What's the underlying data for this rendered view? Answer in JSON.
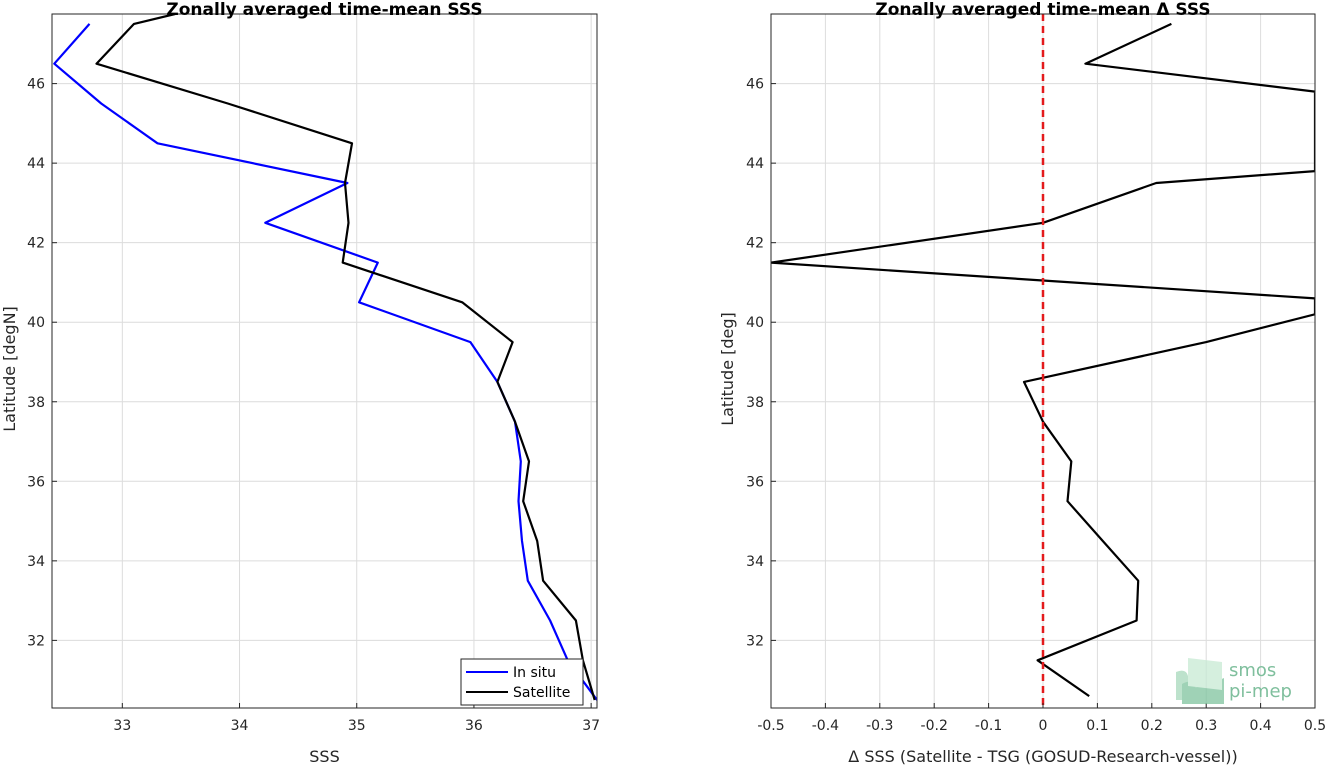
{
  "chart_data": [
    {
      "type": "line",
      "title": "Zonally averaged time-mean SSS",
      "xlabel": "SSS",
      "ylabel": "Latitude [degN]",
      "xlim": [
        32.4,
        37.05
      ],
      "ylim": [
        30.3,
        47.75
      ],
      "xticks": [
        33,
        34,
        35,
        36,
        37
      ],
      "yticks": [
        32,
        34,
        36,
        38,
        40,
        42,
        44,
        46
      ],
      "grid": true,
      "legend": "bottom-right",
      "series": [
        {
          "name": "In situ",
          "color": "#0000ff",
          "x": [
            32.72,
            32.42,
            32.82,
            33.3,
            34.92,
            34.22,
            35.18,
            35.02,
            35.97,
            36.2,
            36.35,
            36.4,
            36.38,
            36.41,
            36.46,
            36.65,
            36.8,
            37.05
          ],
          "y": [
            47.5,
            46.5,
            45.5,
            44.5,
            43.5,
            42.5,
            41.5,
            40.5,
            39.5,
            38.5,
            37.5,
            36.5,
            35.5,
            34.5,
            33.5,
            32.5,
            31.5,
            30.5
          ]
        },
        {
          "name": "Satellite",
          "color": "#000000",
          "x": [
            33.45,
            33.1,
            32.78,
            33.9,
            34.96,
            34.9,
            34.93,
            34.88,
            35.9,
            36.33,
            36.2,
            36.35,
            36.47,
            36.42,
            36.54,
            36.59,
            36.87,
            36.93,
            37.03
          ],
          "y": [
            47.75,
            47.5,
            46.5,
            45.5,
            44.5,
            43.5,
            42.5,
            41.5,
            40.5,
            39.5,
            38.5,
            37.5,
            36.5,
            35.5,
            34.5,
            33.5,
            32.5,
            31.5,
            30.5
          ]
        }
      ]
    },
    {
      "type": "line",
      "title": "Zonally averaged time-mean Δ SSS",
      "xlabel": "Δ SSS (Satellite - TSG (GOSUD-Research-vessel))",
      "ylabel": "Latitude [deg]",
      "xlim": [
        -0.5,
        0.5
      ],
      "ylim": [
        30.3,
        47.75
      ],
      "xticks": [
        -0.5,
        -0.4,
        -0.3,
        -0.2,
        -0.1,
        0,
        0.1,
        0.2,
        0.3,
        0.4,
        0.5
      ],
      "xticklabels": [
        "-0.5",
        "-0.4",
        "-0.3",
        "-0.2",
        "-0.1",
        "0",
        "0.1",
        "0.2",
        "0.3",
        "0.4",
        "0.5"
      ],
      "yticks": [
        32,
        34,
        36,
        38,
        40,
        42,
        44,
        46
      ],
      "grid": true,
      "series": [
        {
          "color": "#000000",
          "x": [
            0.236,
            0.078,
            0.5,
            0.5,
            0.208,
            0.0,
            -0.5,
            0.5,
            0.5,
            0.3,
            -0.035,
            0.0,
            0.052,
            0.045,
            0.11,
            0.175,
            0.172,
            -0.01,
            0.085
          ],
          "y": [
            47.5,
            46.5,
            45.8,
            43.8,
            43.5,
            42.5,
            41.5,
            40.6,
            40.2,
            39.5,
            38.5,
            37.5,
            36.5,
            35.5,
            34.5,
            33.5,
            32.5,
            31.5,
            30.6
          ]
        }
      ],
      "reference_line": {
        "x": 0,
        "color": "#e31a1c",
        "style": "dashed"
      }
    }
  ],
  "legend": {
    "entries": [
      "In situ",
      "Satellite"
    ]
  },
  "logo": {
    "line1": "smos",
    "line2": "pi-mep"
  }
}
